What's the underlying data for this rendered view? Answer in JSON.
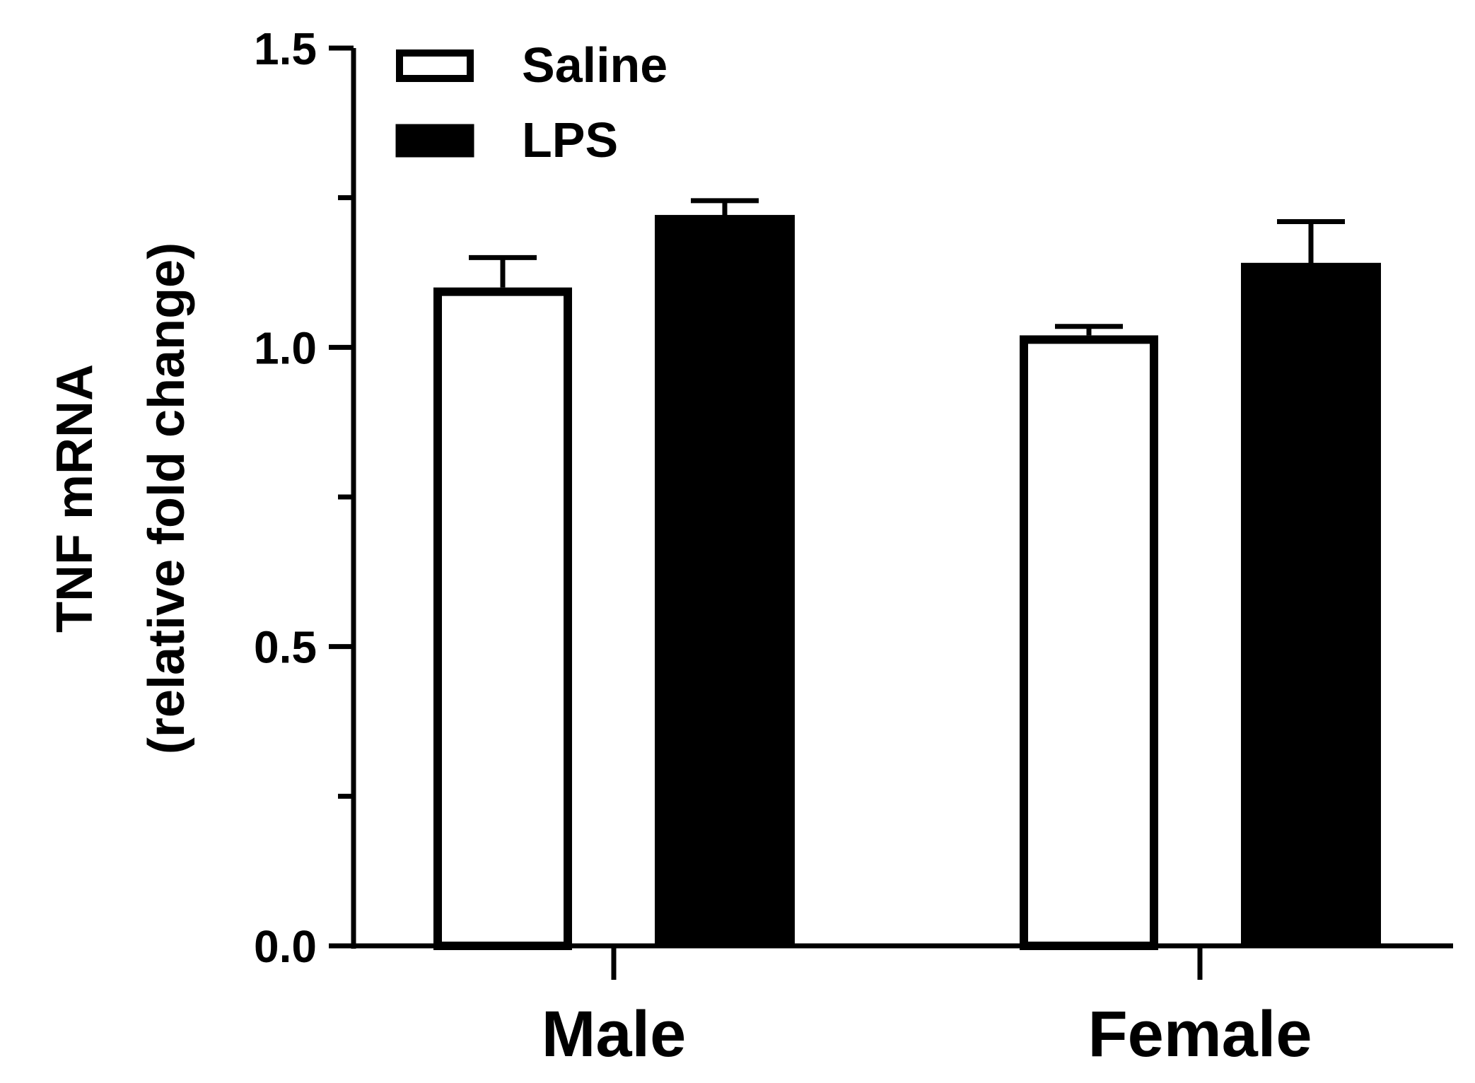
{
  "chart_data": {
    "type": "bar",
    "categories": [
      "Male",
      "Female"
    ],
    "series": [
      {
        "name": "Saline",
        "values": [
          1.1,
          1.02
        ],
        "errors": [
          0.05,
          0.015
        ],
        "fill": "#ffffff",
        "stroke": "#000000"
      },
      {
        "name": "LPS",
        "values": [
          1.22,
          1.14
        ],
        "errors": [
          0.025,
          0.07
        ],
        "fill": "#000000",
        "stroke": "#000000"
      }
    ],
    "ylabel_line1": "TNF mRNA",
    "ylabel_line2": "(relative fold change)",
    "ylim": [
      0,
      1.5
    ],
    "yticks": [
      0,
      0.5,
      1.0,
      1.5
    ],
    "ytick_labels": [
      "0.0",
      "0.5",
      "1.0",
      "1.5"
    ],
    "minor_yticks": [
      0.25,
      0.75,
      1.25
    ],
    "legend_position": "top-left",
    "grid": false
  }
}
